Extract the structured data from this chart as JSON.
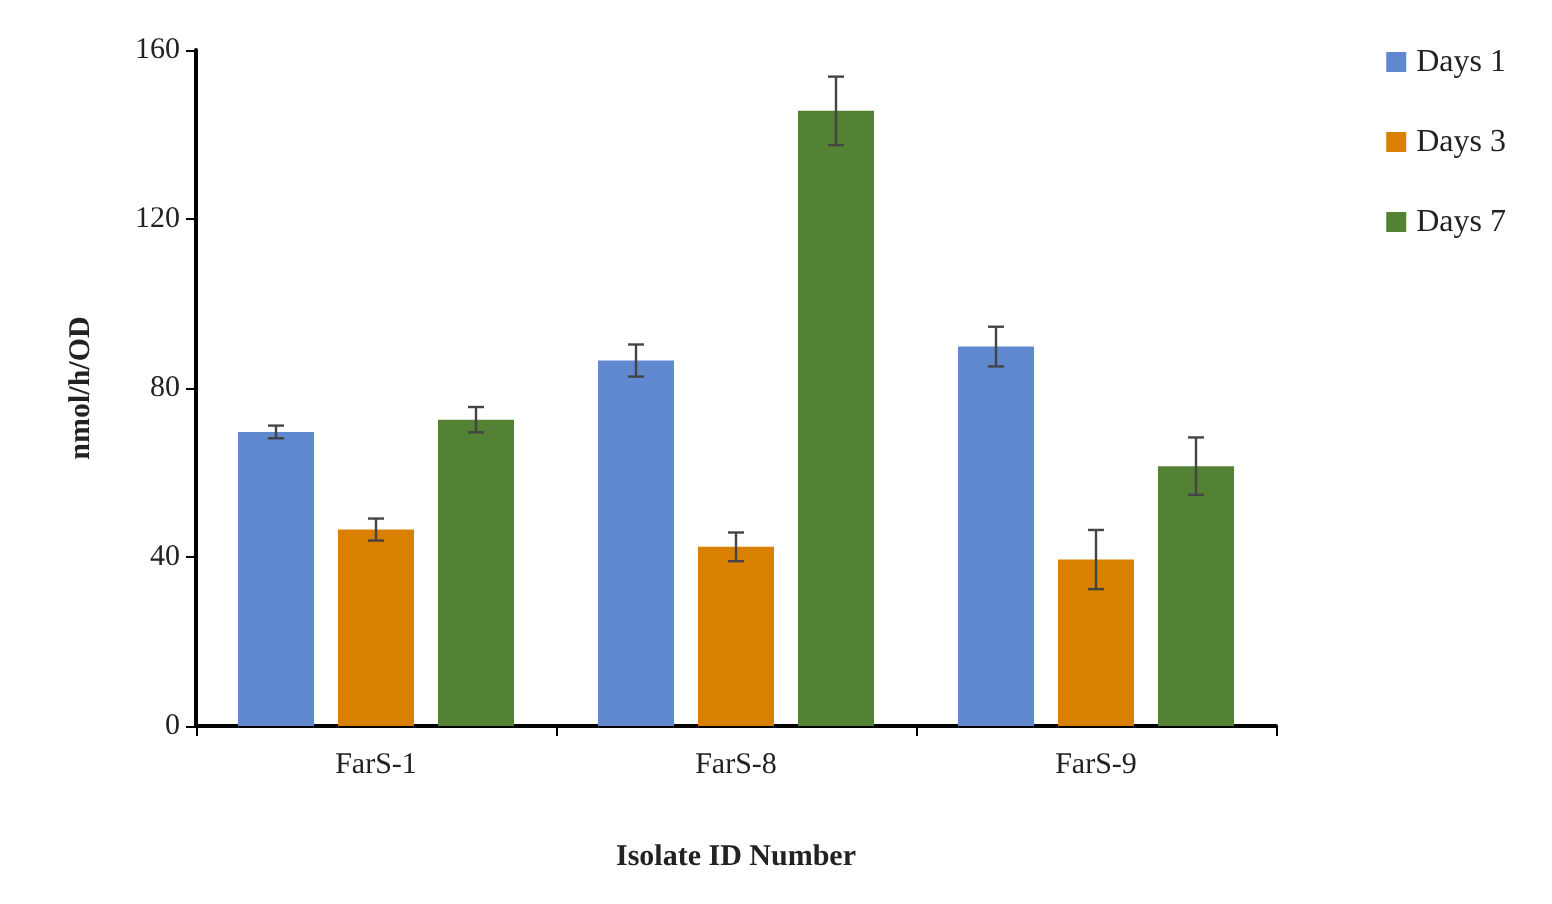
{
  "chart_data": {
    "type": "bar",
    "xlabel": "Isolate ID Number",
    "ylabel": "nmol/h/OD",
    "categories": [
      "FarS-1",
      "FarS-8",
      "FarS-9"
    ],
    "series": [
      {
        "name": "Days 1",
        "color": "#6088ce",
        "values": [
          69.6,
          86.5,
          89.8
        ],
        "errors": [
          1.5,
          3.8,
          4.7
        ]
      },
      {
        "name": "Days 3",
        "color": "#d98000",
        "values": [
          46.5,
          42.4,
          39.4
        ],
        "errors": [
          2.6,
          3.4,
          7
        ]
      },
      {
        "name": "Days 7",
        "color": "#548235",
        "values": [
          72.5,
          145.6,
          61.5
        ],
        "errors": [
          3,
          8.1,
          6.8
        ]
      }
    ],
    "ylim": [
      0,
      160
    ],
    "yticks": [
      0,
      40,
      80,
      120,
      160
    ],
    "grid": false,
    "legend": "top right"
  }
}
